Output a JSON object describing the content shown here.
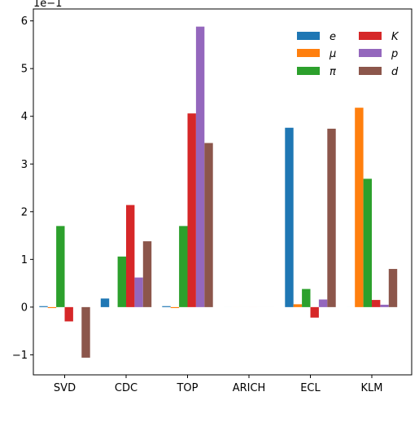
{
  "chart_data": {
    "type": "bar",
    "categories": [
      "SVD",
      "CDC",
      "TOP",
      "ARICH",
      "ECL",
      "KLM"
    ],
    "series": [
      {
        "name": "e",
        "color": "#1f77b4",
        "values": [
          0.02,
          0.18,
          0.02,
          0.0,
          3.76,
          0.0
        ]
      },
      {
        "name": "μ",
        "color": "#ff7f0e",
        "values": [
          -0.02,
          0.0,
          -0.02,
          0.0,
          0.06,
          4.18
        ]
      },
      {
        "name": "π",
        "color": "#2ca02c",
        "values": [
          1.7,
          1.06,
          1.7,
          0.0,
          0.38,
          2.69
        ]
      },
      {
        "name": "K",
        "color": "#d62728",
        "values": [
          -0.3,
          2.14,
          4.06,
          0.0,
          -0.22,
          0.15
        ]
      },
      {
        "name": "p",
        "color": "#9467bd",
        "values": [
          0.0,
          0.62,
          5.88,
          0.0,
          0.16,
          0.05
        ]
      },
      {
        "name": "d",
        "color": "#8c564b",
        "values": [
          -1.06,
          1.38,
          3.44,
          0.0,
          3.74,
          0.8
        ]
      }
    ],
    "ylim": [
      -1.42,
      6.25
    ],
    "yticks": [
      -1,
      0,
      1,
      2,
      3,
      4,
      5,
      6
    ],
    "ytick_labels": [
      "−1",
      "0",
      "1",
      "2",
      "3",
      "4",
      "5",
      "6"
    ],
    "scale_label": "1e−1",
    "legend": {
      "location": "top-right",
      "columns": 2
    },
    "grid": false
  }
}
